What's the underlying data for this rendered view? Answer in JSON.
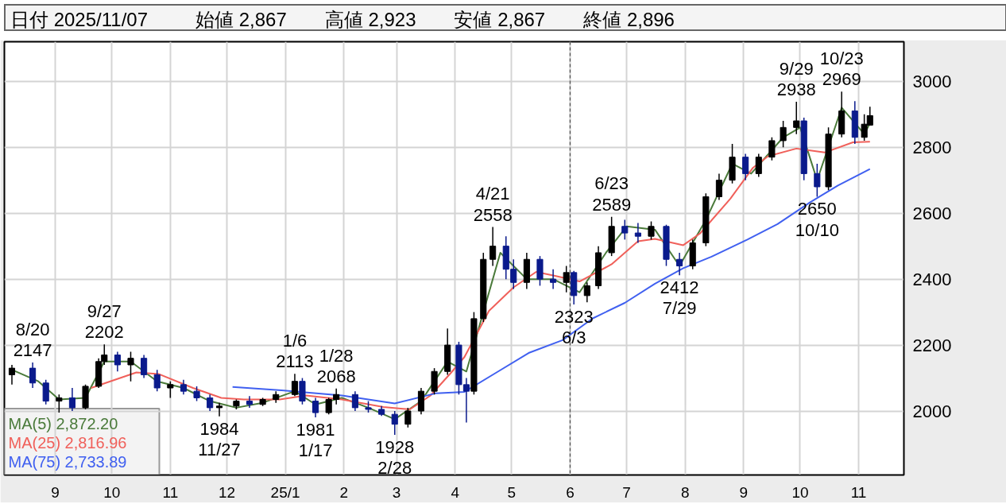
{
  "chart_data": {
    "type": "candlestick",
    "annotations": [
      "日付 2025/11/07",
      "始値 2,867",
      "高値 2,923",
      "安値 2,867",
      "終値 2,896",
      {
        "text": "8/20\n2147",
        "x": "2024-08-20",
        "y": 2147
      },
      {
        "text": "9/27\n2202",
        "x": "2024-09-27",
        "y": 2202
      },
      {
        "text": "1984\n11/27",
        "x": "2024-11-27",
        "y": 1984
      },
      {
        "text": "1/6\n2113",
        "x": "2025-01-06",
        "y": 2113
      },
      {
        "text": "1981\n1/17",
        "x": "2025-01-17",
        "y": 1981
      },
      {
        "text": "1/28\n2068",
        "x": "2025-01-28",
        "y": 2068
      },
      {
        "text": "1928\n2/28",
        "x": "2025-02-28",
        "y": 1928
      },
      {
        "text": "4/21\n2558",
        "x": "2025-04-21",
        "y": 2558
      },
      {
        "text": "2323\n6/3",
        "x": "2025-06-03",
        "y": 2323
      },
      {
        "text": "6/23\n2589",
        "x": "2025-06-23",
        "y": 2589
      },
      {
        "text": "2412\n7/29",
        "x": "2025-07-29",
        "y": 2412
      },
      {
        "text": "9/29\n2938",
        "x": "2025-09-29",
        "y": 2938
      },
      {
        "text": "2650\n10/10",
        "x": "2025-10-10",
        "y": 2650
      },
      {
        "text": "10/23\n2969",
        "x": "2025-10-23",
        "y": 2969
      }
    ],
    "x": [
      "2024-08-09",
      "2024-08-20",
      "2024-08-27",
      "2024-09-03",
      "2024-09-10",
      "2024-09-17",
      "2024-09-24",
      "2024-09-27",
      "2024-10-04",
      "2024-10-11",
      "2024-10-18",
      "2024-10-25",
      "2024-11-01",
      "2024-11-08",
      "2024-11-15",
      "2024-11-22",
      "2024-11-27",
      "2024-12-06",
      "2024-12-13",
      "2024-12-20",
      "2024-12-27",
      "2025-01-06",
      "2025-01-10",
      "2025-01-17",
      "2025-01-24",
      "2025-01-28",
      "2025-02-07",
      "2025-02-14",
      "2025-02-21",
      "2025-02-28",
      "2025-03-07",
      "2025-03-14",
      "2025-03-21",
      "2025-03-28",
      "2025-04-03",
      "2025-04-07",
      "2025-04-11",
      "2025-04-16",
      "2025-04-21",
      "2025-04-28",
      "2025-05-02",
      "2025-05-09",
      "2025-05-16",
      "2025-05-23",
      "2025-05-30",
      "2025-06-03",
      "2025-06-10",
      "2025-06-16",
      "2025-06-23",
      "2025-06-30",
      "2025-07-07",
      "2025-07-14",
      "2025-07-22",
      "2025-07-29",
      "2025-08-05",
      "2025-08-12",
      "2025-08-19",
      "2025-08-26",
      "2025-09-02",
      "2025-09-09",
      "2025-09-16",
      "2025-09-22",
      "2025-09-29",
      "2025-10-03",
      "2025-10-10",
      "2025-10-16",
      "2025-10-23",
      "2025-10-30",
      "2025-11-04",
      "2025-11-07"
    ],
    "ohlc": [
      [
        2110,
        2140,
        2080,
        2130
      ],
      [
        2130,
        2147,
        2070,
        2085
      ],
      [
        2085,
        2095,
        2020,
        2030
      ],
      [
        2030,
        2050,
        1995,
        2040
      ],
      [
        2040,
        2070,
        2000,
        2010
      ],
      [
        2010,
        2080,
        2005,
        2075
      ],
      [
        2075,
        2160,
        2070,
        2150
      ],
      [
        2150,
        2202,
        2140,
        2170
      ],
      [
        2170,
        2180,
        2120,
        2140
      ],
      [
        2140,
        2180,
        2090,
        2160
      ],
      [
        2160,
        2170,
        2100,
        2110
      ],
      [
        2110,
        2125,
        2060,
        2070
      ],
      [
        2070,
        2090,
        2040,
        2080
      ],
      [
        2080,
        2095,
        2050,
        2060
      ],
      [
        2060,
        2075,
        2030,
        2040
      ],
      [
        2040,
        2050,
        2000,
        2010
      ],
      [
        2010,
        2025,
        1984,
        2015
      ],
      [
        2015,
        2035,
        2005,
        2030
      ],
      [
        2030,
        2045,
        2010,
        2020
      ],
      [
        2020,
        2040,
        2015,
        2035
      ],
      [
        2035,
        2060,
        2025,
        2050
      ],
      [
        2050,
        2113,
        2045,
        2090
      ],
      [
        2090,
        2100,
        2020,
        2030
      ],
      [
        2030,
        2040,
        1981,
        1995
      ],
      [
        1995,
        2040,
        1990,
        2035
      ],
      [
        2035,
        2068,
        2020,
        2050
      ],
      [
        2050,
        2060,
        2000,
        2010
      ],
      [
        2010,
        2030,
        1995,
        2005
      ],
      [
        2005,
        2015,
        1985,
        1990
      ],
      [
        1990,
        2000,
        1928,
        1960
      ],
      [
        1960,
        2010,
        1950,
        2000
      ],
      [
        2000,
        2070,
        1990,
        2060
      ],
      [
        2060,
        2130,
        2050,
        2120
      ],
      [
        2120,
        2250,
        2110,
        2200
      ],
      [
        2200,
        2210,
        2050,
        2080
      ],
      [
        2080,
        2100,
        1965,
        2060
      ],
      [
        2060,
        2300,
        2050,
        2280
      ],
      [
        2280,
        2480,
        2270,
        2460
      ],
      [
        2460,
        2558,
        2440,
        2500
      ],
      [
        2500,
        2530,
        2400,
        2430
      ],
      [
        2430,
        2460,
        2370,
        2390
      ],
      [
        2390,
        2480,
        2370,
        2460
      ],
      [
        2460,
        2470,
        2380,
        2400
      ],
      [
        2400,
        2430,
        2370,
        2390
      ],
      [
        2390,
        2440,
        2360,
        2420
      ],
      [
        2420,
        2425,
        2323,
        2350
      ],
      [
        2350,
        2390,
        2330,
        2380
      ],
      [
        2380,
        2500,
        2370,
        2480
      ],
      [
        2480,
        2589,
        2470,
        2560
      ],
      [
        2560,
        2580,
        2520,
        2540
      ],
      [
        2540,
        2570,
        2510,
        2530
      ],
      [
        2530,
        2575,
        2520,
        2560
      ],
      [
        2560,
        2565,
        2440,
        2460
      ],
      [
        2460,
        2480,
        2412,
        2440
      ],
      [
        2440,
        2520,
        2430,
        2510
      ],
      [
        2510,
        2660,
        2500,
        2650
      ],
      [
        2650,
        2720,
        2640,
        2700
      ],
      [
        2700,
        2810,
        2690,
        2770
      ],
      [
        2770,
        2780,
        2700,
        2720
      ],
      [
        2720,
        2780,
        2710,
        2770
      ],
      [
        2770,
        2830,
        2760,
        2820
      ],
      [
        2820,
        2880,
        2800,
        2860
      ],
      [
        2860,
        2938,
        2840,
        2880
      ],
      [
        2880,
        2890,
        2700,
        2720
      ],
      [
        2720,
        2750,
        2650,
        2680
      ],
      [
        2680,
        2860,
        2670,
        2840
      ],
      [
        2840,
        2969,
        2830,
        2910
      ],
      [
        2910,
        2940,
        2810,
        2830
      ],
      [
        2830,
        2900,
        2820,
        2870
      ],
      [
        2867,
        2923,
        2867,
        2896
      ]
    ],
    "colors": [
      "#000000",
      "#0a1a8c",
      "#0a1a8c",
      "#000000",
      "#0a1a8c",
      "#000000",
      "#000000",
      "#000000",
      "#0a1a8c",
      "#000000",
      "#0a1a8c",
      "#0a1a8c",
      "#000000",
      "#0a1a8c",
      "#0a1a8c",
      "#0a1a8c",
      "#000000",
      "#000000",
      "#0a1a8c",
      "#000000",
      "#000000",
      "#000000",
      "#0a1a8c",
      "#0a1a8c",
      "#000000",
      "#000000",
      "#0a1a8c",
      "#0a1a8c",
      "#0a1a8c",
      "#0a1a8c",
      "#000000",
      "#000000",
      "#000000",
      "#000000",
      "#0a1a8c",
      "#0a1a8c",
      "#000000",
      "#000000",
      "#000000",
      "#0a1a8c",
      "#0a1a8c",
      "#000000",
      "#0a1a8c",
      "#0a1a8c",
      "#000000",
      "#0a1a8c",
      "#000000",
      "#000000",
      "#000000",
      "#0a1a8c",
      "#0a1a8c",
      "#000000",
      "#0a1a8c",
      "#0a1a8c",
      "#000000",
      "#000000",
      "#000000",
      "#000000",
      "#0a1a8c",
      "#000000",
      "#000000",
      "#000000",
      "#000000",
      "#0a1a8c",
      "#0a1a8c",
      "#000000",
      "#000000",
      "#0a1a8c",
      "#000000",
      "#000000"
    ],
    "series": [
      {
        "name": "MA(5) 2,872.20",
        "type": "line",
        "color": "#4a7a3a",
        "x": [
          "2024-08-09",
          "2024-08-23",
          "2024-09-03",
          "2024-09-17",
          "2024-09-27",
          "2024-10-11",
          "2024-10-25",
          "2024-11-08",
          "2024-11-22",
          "2024-12-06",
          "2024-12-20",
          "2025-01-06",
          "2025-01-17",
          "2025-01-31",
          "2025-02-14",
          "2025-02-28",
          "2025-03-14",
          "2025-03-28",
          "2025-04-07",
          "2025-04-16",
          "2025-04-25",
          "2025-05-09",
          "2025-05-23",
          "2025-06-06",
          "2025-06-20",
          "2025-07-01",
          "2025-07-16",
          "2025-07-29",
          "2025-08-12",
          "2025-08-26",
          "2025-09-05",
          "2025-09-22",
          "2025-10-01",
          "2025-10-10",
          "2025-10-23",
          "2025-11-04",
          "2025-11-07"
        ],
        "values": [
          2125,
          2090,
          2035,
          2040,
          2150,
          2150,
          2090,
          2070,
          2030,
          2010,
          2025,
          2060,
          2020,
          2040,
          2010,
          1975,
          2030,
          2150,
          2120,
          2300,
          2480,
          2400,
          2400,
          2360,
          2480,
          2560,
          2550,
          2440,
          2580,
          2750,
          2720,
          2830,
          2860,
          2700,
          2920,
          2840,
          2872
        ]
      },
      {
        "name": "MA(25) 2,816.96",
        "type": "line",
        "color": "#f0605a",
        "x": [
          "2024-09-20",
          "2024-10-14",
          "2024-10-26",
          "2024-11-13",
          "2024-11-28",
          "2024-12-10",
          "2024-12-29",
          "2025-01-12",
          "2025-01-31",
          "2025-02-22",
          "2025-03-08",
          "2025-03-19",
          "2025-03-30",
          "2025-04-06",
          "2025-04-19",
          "2025-05-02",
          "2025-05-14",
          "2025-05-24",
          "2025-06-06",
          "2025-06-23",
          "2025-07-07",
          "2025-07-16",
          "2025-07-31",
          "2025-08-09",
          "2025-08-25",
          "2025-09-06",
          "2025-09-14",
          "2025-09-29",
          "2025-10-14",
          "2025-10-29",
          "2025-11-07"
        ],
        "values": [
          2070,
          2117,
          2112,
          2070,
          2040,
          2035,
          2035,
          2047,
          2035,
          2012,
          2005,
          2047,
          2117,
          2164,
          2304,
          2375,
          2422,
          2410,
          2393,
          2445,
          2515,
          2522,
          2503,
          2539,
          2644,
          2738,
          2773,
          2796,
          2784,
          2815,
          2817
        ]
      },
      {
        "name": "MA(75) 2,733.89",
        "type": "line",
        "color": "#4060f0",
        "x": [
          "2024-12-04",
          "2024-12-30",
          "2025-01-31",
          "2025-02-28",
          "2025-03-22",
          "2025-04-06",
          "2025-04-23",
          "2025-05-10",
          "2025-05-28",
          "2025-06-13",
          "2025-06-30",
          "2025-07-16",
          "2025-07-31",
          "2025-08-15",
          "2025-09-03",
          "2025-09-19",
          "2025-10-06",
          "2025-10-21",
          "2025-11-07"
        ],
        "values": [
          2073,
          2063,
          2047,
          2023,
          2054,
          2058,
          2117,
          2176,
          2215,
          2281,
          2328,
          2386,
          2433,
          2468,
          2520,
          2567,
          2632,
          2684,
          2734
        ]
      }
    ],
    "xlim": [
      "2024-08-05",
      "2025-11-25"
    ],
    "ylim": [
      1806,
      3120
    ],
    "xticks": [
      {
        "value": "2024-09-01",
        "label": "9"
      },
      {
        "value": "2024-10-01",
        "label": "10"
      },
      {
        "value": "2024-11-01",
        "label": "11"
      },
      {
        "value": "2024-12-01",
        "label": "12"
      },
      {
        "value": "2025-01-01",
        "label": "25/1"
      },
      {
        "value": "2025-02-01",
        "label": "2"
      },
      {
        "value": "2025-03-01",
        "label": "3"
      },
      {
        "value": "2025-04-01",
        "label": "4"
      },
      {
        "value": "2025-05-01",
        "label": "5"
      },
      {
        "value": "2025-06-01",
        "label": "6"
      },
      {
        "value": "2025-07-01",
        "label": "7"
      },
      {
        "value": "2025-08-01",
        "label": "8"
      },
      {
        "value": "2025-09-01",
        "label": "9"
      },
      {
        "value": "2025-10-01",
        "label": "10"
      },
      {
        "value": "2025-11-01",
        "label": "11"
      }
    ],
    "yticks": [
      2000,
      2200,
      2400,
      2600,
      2800,
      3000
    ],
    "grid": true,
    "legend": "bottom left",
    "ref_lines": [
      {
        "axis": "x",
        "value": "2025-06-01",
        "color": "#555555",
        "line_style": "dashed"
      }
    ]
  }
}
